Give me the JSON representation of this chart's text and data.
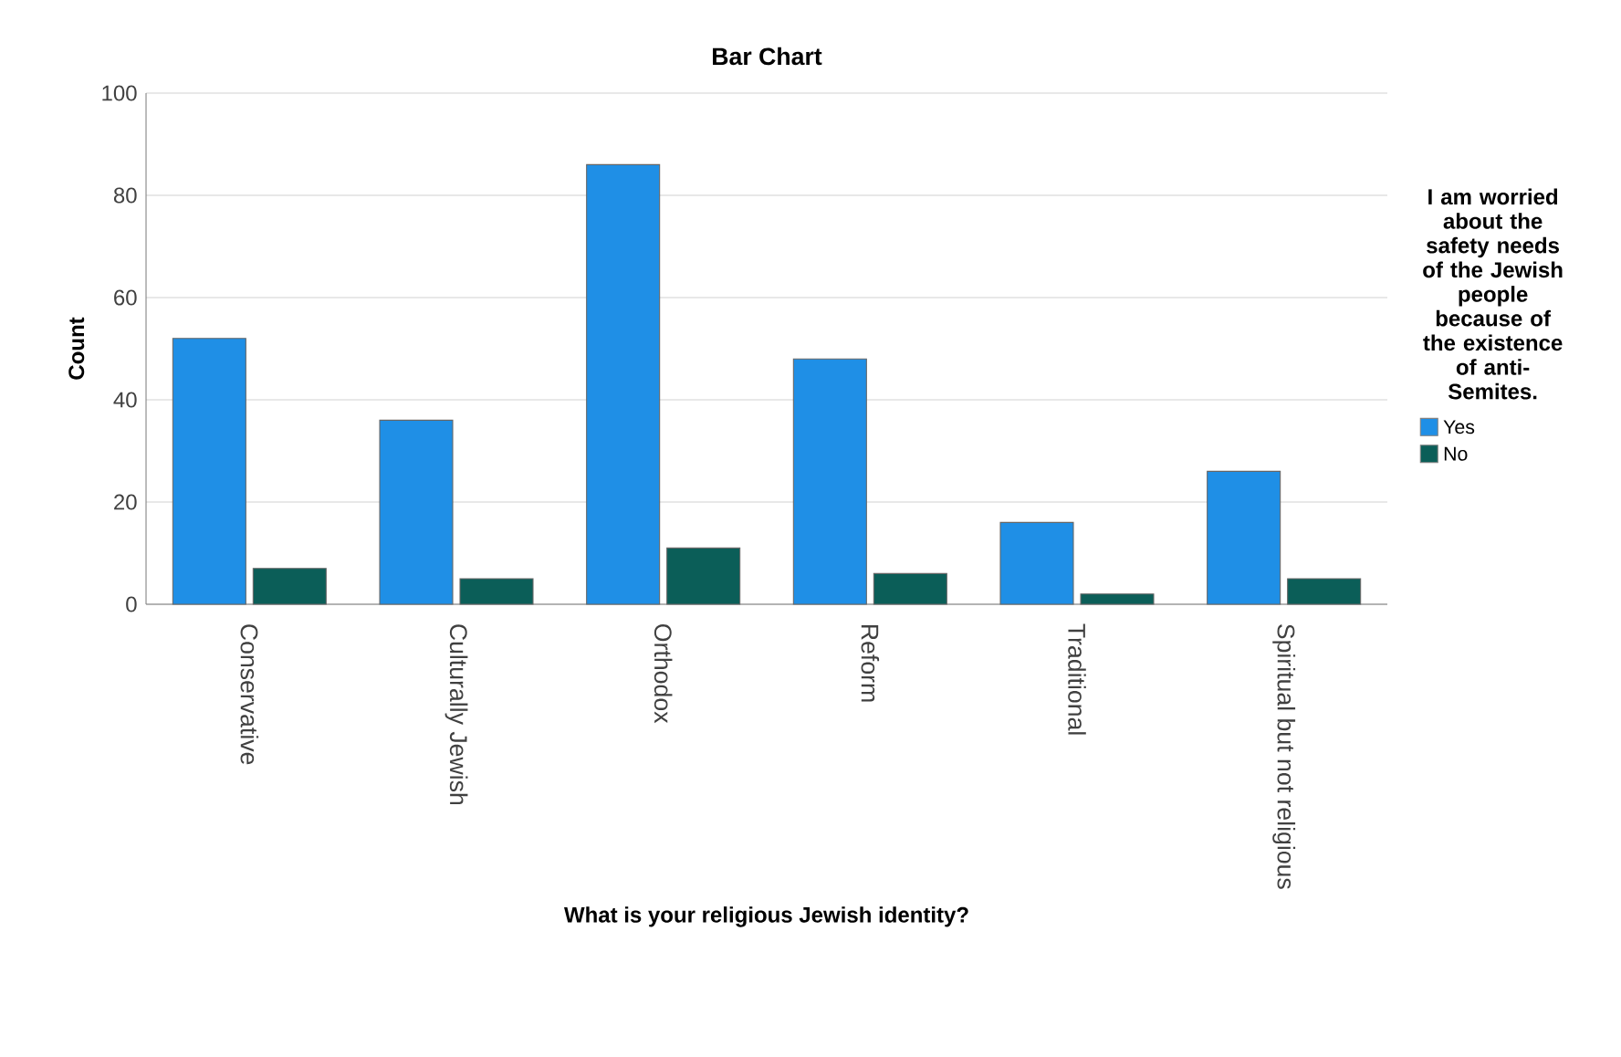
{
  "chart_data": {
    "type": "bar",
    "title": "Bar Chart",
    "xlabel": "What is your religious Jewish identity?",
    "ylabel": "Count",
    "legend_title": "I am worried about the safety needs of the Jewish people because of the existence of anti-Semites.",
    "categories": [
      "Conservative",
      "Culturally Jewish",
      "Orthodox",
      "Reform",
      "Traditional",
      "Spiritual but not religious"
    ],
    "series": [
      {
        "name": "Yes",
        "color": "#1f8fe6",
        "values": [
          52,
          36,
          86,
          48,
          16,
          26
        ]
      },
      {
        "name": "No",
        "color": "#0b5e58",
        "values": [
          7,
          5,
          11,
          6,
          2,
          5
        ]
      }
    ],
    "ylim": [
      0,
      100
    ],
    "yticks": [
      0,
      20,
      40,
      60,
      80,
      100
    ],
    "grid": "y",
    "legend": "right"
  }
}
